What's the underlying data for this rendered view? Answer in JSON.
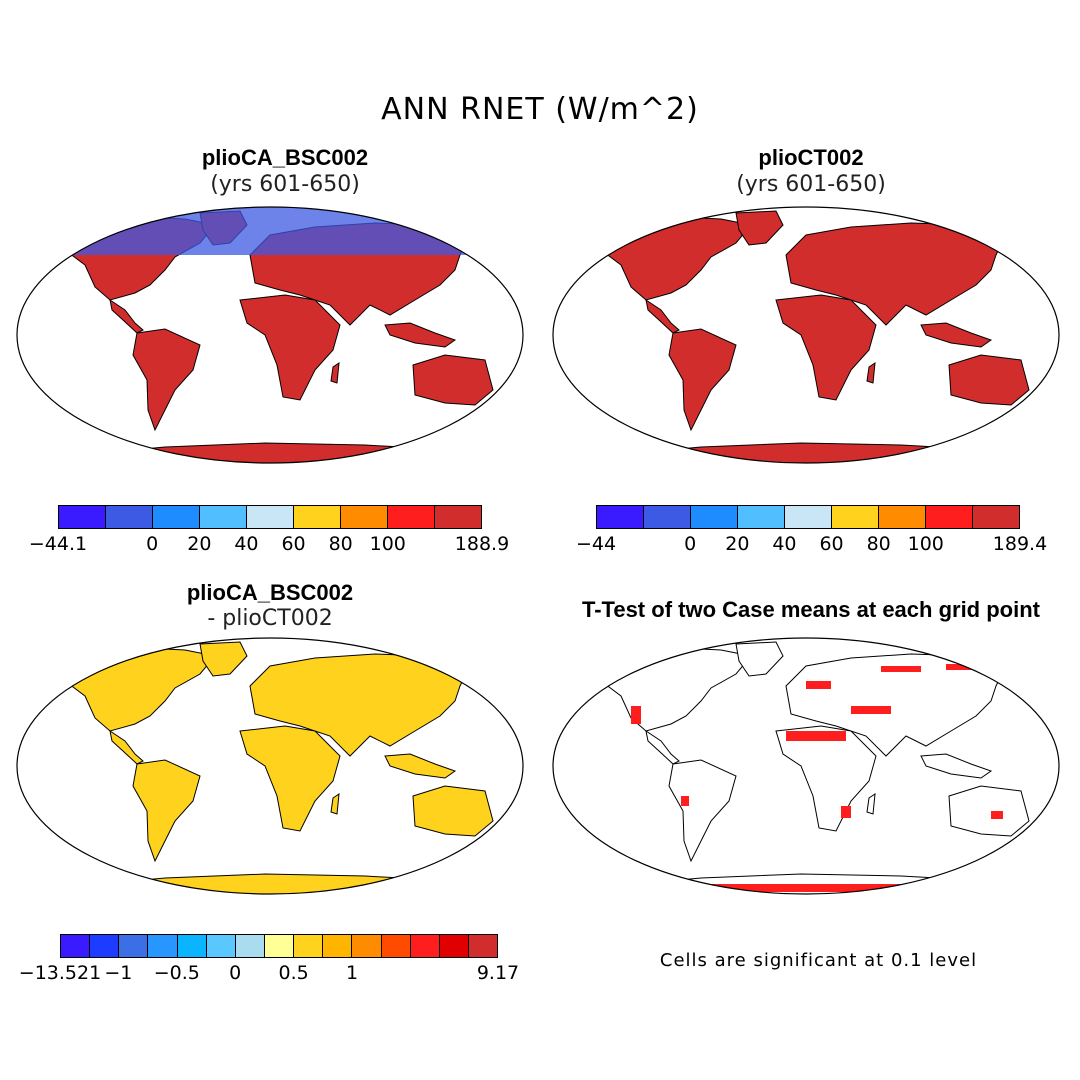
{
  "title": "ANN RNET (W/m^2)",
  "panels": {
    "top_left": {
      "title": "plioCA_BSC002",
      "subtitle": "(yrs 601-650)"
    },
    "top_right": {
      "title": "plioCT002",
      "subtitle": "(yrs 601-650)"
    },
    "bottom_left": {
      "title": "plioCA_BSC002",
      "subtitle": "- plioCT002"
    },
    "bottom_right": {
      "title": "T-Test of two Case means at each grid point",
      "note": "Cells are significant at 0.1 level"
    }
  },
  "colorbars": {
    "cb1": {
      "colors": [
        "#3a1aff",
        "#3c5ae3",
        "#1e8cff",
        "#50beff",
        "#c8e6f5",
        "#ffd21e",
        "#ff8c00",
        "#ff1e1e",
        "#d22d2d"
      ],
      "labels": [
        "-44.1",
        "0",
        "20",
        "40",
        "60",
        "80",
        "100",
        "188.9"
      ],
      "label_bins": [
        0,
        2,
        3,
        4,
        5,
        6,
        7,
        9
      ]
    },
    "cb2": {
      "colors": [
        "#3a1aff",
        "#3c5ae3",
        "#1e8cff",
        "#50beff",
        "#c8e6f5",
        "#ffd21e",
        "#ff8c00",
        "#ff1e1e",
        "#d22d2d"
      ],
      "labels": [
        "-44",
        "0",
        "20",
        "40",
        "60",
        "80",
        "100",
        "189.4"
      ],
      "label_bins": [
        0,
        2,
        3,
        4,
        5,
        6,
        7,
        9
      ]
    },
    "cb3": {
      "colors": [
        "#3a1aff",
        "#1e3cff",
        "#3c6ee6",
        "#2896ff",
        "#0ab4ff",
        "#5ac8ff",
        "#aadcf0",
        "#ffff96",
        "#ffd21e",
        "#ffb400",
        "#ff8c00",
        "#ff4b00",
        "#ff1e1e",
        "#e10000",
        "#d22d2d"
      ],
      "labels": [
        "-13.521",
        "-1",
        "-0.5",
        "0",
        "0.5",
        "1",
        "9.17"
      ],
      "label_bins": [
        0,
        2,
        4,
        6,
        8,
        10,
        15
      ]
    }
  }
}
